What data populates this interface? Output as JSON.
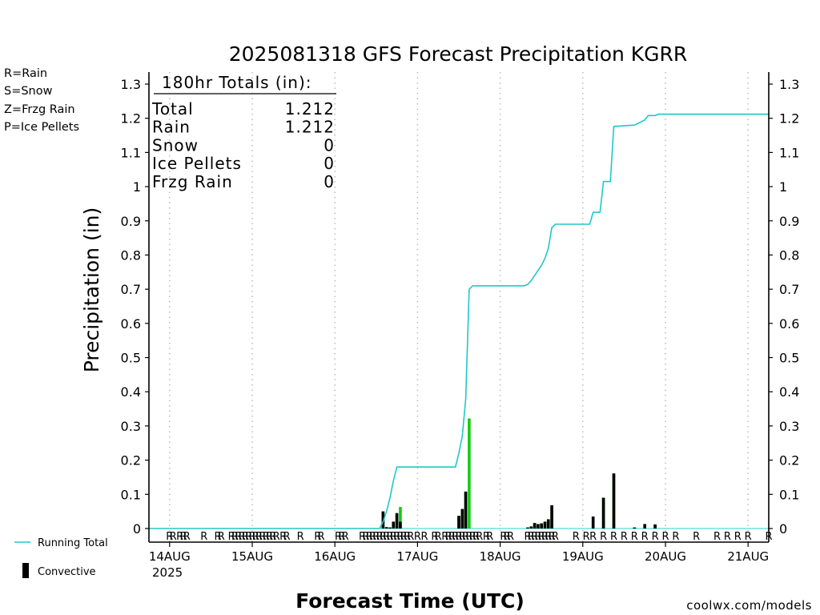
{
  "chart_data": {
    "type": "bar",
    "title": "2025081318 GFS Forecast Precipitation KGRR",
    "xlabel": "Forecast Time (UTC)",
    "ylabel": "Precipitation (in)",
    "watermark": "coolwx.com/models",
    "year_label": "2025",
    "ylim": [
      0,
      1.35
    ],
    "xlim": [
      -0.25,
      7.25
    ],
    "y_ticks": [
      "0",
      "0.1",
      "0.2",
      "0.3",
      "0.4",
      "0.5",
      "0.6",
      "0.7",
      "0.8",
      "0.9",
      "1",
      "1.1",
      "1.2",
      "1.3"
    ],
    "x_ticks": [
      "14AUG",
      "15AUG",
      "16AUG",
      "17AUG",
      "18AUG",
      "19AUG",
      "20AUG",
      "21AUG"
    ],
    "grid": "vertical dotted at each day",
    "type_legend": [
      {
        "text": "R=Rain",
        "color": "#22cc22"
      },
      {
        "text": "S=Snow",
        "color": "#3355ff"
      },
      {
        "text": "Z=Frzg Rain",
        "color": "#ff8822"
      },
      {
        "text": "P=Ice Pellets",
        "color": "#ff2299"
      }
    ],
    "series_legend": [
      {
        "text": "Running Total",
        "color": "#20c8c8"
      },
      {
        "text": "Convective",
        "color": "#000000"
      }
    ],
    "totals": {
      "header": "180hr Totals (in):",
      "rows": [
        {
          "label": "Total",
          "value": "1.212"
        },
        {
          "label": "Rain",
          "value": "1.212"
        },
        {
          "label": "Snow",
          "value": "0"
        },
        {
          "label": "Ice Pellets",
          "value": "0"
        },
        {
          "label": "Frzg Rain",
          "value": "0"
        }
      ]
    },
    "colors": {
      "rain": "#11cc11",
      "convective": "#000000",
      "running_total": "#20c8c8",
      "rain_label": "#22cc22"
    },
    "precip_bars": [
      {
        "x": 2.583,
        "rain": 0.05,
        "conv": 0.05
      },
      {
        "x": 2.625,
        "rain": 0.004,
        "conv": 0.004
      },
      {
        "x": 2.667,
        "rain": 0.003,
        "conv": 0.003
      },
      {
        "x": 2.708,
        "rain": 0.02,
        "conv": 0.02
      },
      {
        "x": 2.75,
        "rain": 0.045,
        "conv": 0.045
      },
      {
        "x": 2.792,
        "rain": 0.063,
        "conv": 0.02
      },
      {
        "x": 3.5,
        "rain": 0.037,
        "conv": 0.037
      },
      {
        "x": 3.542,
        "rain": 0.057,
        "conv": 0.057
      },
      {
        "x": 3.583,
        "rain": 0.108,
        "conv": 0.108
      },
      {
        "x": 3.625,
        "rain": 0.322,
        "conv": 0.0
      },
      {
        "x": 4.333,
        "rain": 0.003,
        "conv": 0.003
      },
      {
        "x": 4.375,
        "rain": 0.006,
        "conv": 0.006
      },
      {
        "x": 4.417,
        "rain": 0.016,
        "conv": 0.016
      },
      {
        "x": 4.458,
        "rain": 0.013,
        "conv": 0.013
      },
      {
        "x": 4.5,
        "rain": 0.015,
        "conv": 0.015
      },
      {
        "x": 4.542,
        "rain": 0.02,
        "conv": 0.02
      },
      {
        "x": 4.583,
        "rain": 0.027,
        "conv": 0.027
      },
      {
        "x": 4.625,
        "rain": 0.068,
        "conv": 0.068
      },
      {
        "x": 5.125,
        "rain": 0.035,
        "conv": 0.035
      },
      {
        "x": 5.25,
        "rain": 0.09,
        "conv": 0.09
      },
      {
        "x": 5.375,
        "rain": 0.161,
        "conv": 0.161
      },
      {
        "x": 5.625,
        "rain": 0.003,
        "conv": 0.003
      },
      {
        "x": 5.75,
        "rain": 0.013,
        "conv": 0.013
      },
      {
        "x": 5.875,
        "rain": 0.012,
        "conv": 0.012
      }
    ],
    "running_total": {
      "x": [
        -0.25,
        2.54,
        2.583,
        2.625,
        2.667,
        2.708,
        2.75,
        2.792,
        2.833,
        3.458,
        3.5,
        3.542,
        3.583,
        3.625,
        3.667,
        4.292,
        4.333,
        4.375,
        4.417,
        4.458,
        4.5,
        4.542,
        4.583,
        4.625,
        4.667,
        5.083,
        5.125,
        5.208,
        5.25,
        5.333,
        5.375,
        5.625,
        5.667,
        5.75,
        5.792,
        5.875,
        5.917,
        7.25
      ],
      "y": [
        0,
        0,
        0.02,
        0.05,
        0.09,
        0.14,
        0.18,
        0.18,
        0.18,
        0.18,
        0.22,
        0.27,
        0.38,
        0.7,
        0.71,
        0.71,
        0.714,
        0.725,
        0.74,
        0.755,
        0.77,
        0.79,
        0.82,
        0.88,
        0.89,
        0.89,
        0.925,
        0.925,
        1.015,
        1.015,
        1.176,
        1.18,
        1.185,
        1.195,
        1.208,
        1.208,
        1.212,
        1.212
      ]
    },
    "r_markers": {
      "label": "R",
      "x": [
        0.0,
        0.042,
        0.125,
        0.167,
        0.208,
        0.417,
        0.583,
        0.625,
        0.75,
        0.792,
        0.833,
        0.875,
        0.917,
        0.958,
        1.0,
        1.042,
        1.083,
        1.125,
        1.167,
        1.208,
        1.25,
        1.292,
        1.375,
        1.417,
        1.583,
        1.792,
        1.833,
        2.042,
        2.083,
        2.125,
        2.333,
        2.375,
        2.417,
        2.458,
        2.5,
        2.542,
        2.583,
        2.625,
        2.667,
        2.708,
        2.75,
        2.792,
        2.833,
        2.875,
        2.917,
        3.0,
        3.083,
        3.208,
        3.25,
        3.333,
        3.375,
        3.417,
        3.458,
        3.5,
        3.542,
        3.583,
        3.625,
        3.667,
        3.708,
        3.75,
        3.833,
        3.875,
        4.042,
        4.083,
        4.125,
        4.333,
        4.375,
        4.417,
        4.458,
        4.5,
        4.542,
        4.583,
        4.625,
        4.667,
        4.917,
        5.042,
        5.125,
        5.25,
        5.375,
        5.5,
        5.625,
        5.75,
        5.875,
        6.0,
        6.125,
        6.375,
        6.625,
        6.75,
        6.875,
        7.0,
        7.25
      ]
    }
  }
}
